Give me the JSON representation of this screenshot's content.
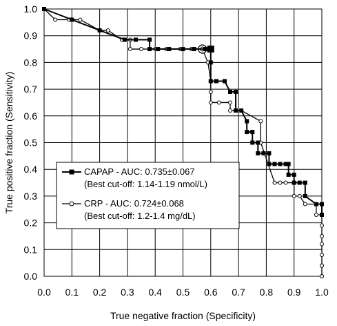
{
  "chart_data": {
    "type": "line",
    "xlabel": "True negative fraction (Specificity)",
    "ylabel": "True positive fraction (Sensitivity)",
    "xlim": [
      0.0,
      1.0
    ],
    "ylim": [
      0.0,
      1.0
    ],
    "x_ticks": [
      "0.0",
      "0.1",
      "0.2",
      "0.3",
      "0.4",
      "0.5",
      "0.6",
      "0.7",
      "0.8",
      "0.9",
      "1.0"
    ],
    "y_ticks": [
      "0.0",
      "0.1",
      "0.2",
      "0.3",
      "0.4",
      "0.5",
      "0.6",
      "0.7",
      "0.8",
      "0.9",
      "1.0"
    ],
    "grid": true,
    "legend_position": "center-left",
    "series": [
      {
        "name": "CAPAP - AUC: 0.735±0.067",
        "note": "(Best cut-off: 1.14-1.19 nmol/L)",
        "marker": "filled-square",
        "color": "#000000",
        "best_cutoff_point": [
          0.6,
          0.85
        ],
        "x": [
          0.0,
          0.1,
          0.2,
          0.29,
          0.33,
          0.38,
          0.38,
          0.41,
          0.45,
          0.5,
          0.54,
          0.58,
          0.6,
          0.6,
          0.6,
          0.62,
          0.62,
          0.65,
          0.67,
          0.67,
          0.69,
          0.69,
          0.71,
          0.73,
          0.73,
          0.75,
          0.75,
          0.77,
          0.77,
          0.79,
          0.81,
          0.81,
          0.83,
          0.85,
          0.87,
          0.88,
          0.88,
          0.9,
          0.9,
          0.92,
          0.94,
          0.94,
          0.98,
          1.0,
          1.0
        ],
        "y": [
          1.0,
          0.96,
          0.92,
          0.885,
          0.885,
          0.885,
          0.85,
          0.85,
          0.85,
          0.85,
          0.85,
          0.85,
          0.85,
          0.8,
          0.73,
          0.73,
          0.73,
          0.73,
          0.69,
          0.69,
          0.69,
          0.62,
          0.62,
          0.58,
          0.54,
          0.54,
          0.5,
          0.5,
          0.46,
          0.46,
          0.46,
          0.42,
          0.42,
          0.42,
          0.42,
          0.42,
          0.38,
          0.38,
          0.35,
          0.35,
          0.35,
          0.3,
          0.27,
          0.27,
          0.23
        ]
      },
      {
        "name": "CRP - AUC: 0.724±0.068",
        "note": "(Best cut-off: 1.2-1.4 mg/dL)",
        "marker": "open-circle",
        "color": "#000000",
        "best_cutoff_point": [
          0.57,
          0.85
        ],
        "x": [
          0.0,
          0.04,
          0.09,
          0.13,
          0.2,
          0.23,
          0.28,
          0.31,
          0.31,
          0.35,
          0.4,
          0.44,
          0.49,
          0.53,
          0.57,
          0.59,
          0.6,
          0.6,
          0.6,
          0.63,
          0.67,
          0.67,
          0.71,
          0.71,
          0.78,
          0.78,
          0.83,
          0.85,
          0.87,
          0.9,
          0.9,
          0.92,
          0.94,
          0.98,
          0.98,
          1.0,
          1.0,
          1.0,
          1.0,
          1.0,
          1.0,
          1.0,
          1.0,
          1.0
        ],
        "y": [
          1.0,
          0.96,
          0.96,
          0.96,
          0.92,
          0.92,
          0.885,
          0.885,
          0.85,
          0.85,
          0.85,
          0.85,
          0.85,
          0.85,
          0.85,
          0.8,
          0.73,
          0.69,
          0.65,
          0.65,
          0.65,
          0.62,
          0.62,
          0.62,
          0.58,
          0.5,
          0.35,
          0.35,
          0.35,
          0.35,
          0.3,
          0.3,
          0.27,
          0.27,
          0.23,
          0.23,
          0.19,
          0.15,
          0.12,
          0.08,
          0.04,
          0.04,
          0.0,
          0.0
        ]
      }
    ]
  }
}
